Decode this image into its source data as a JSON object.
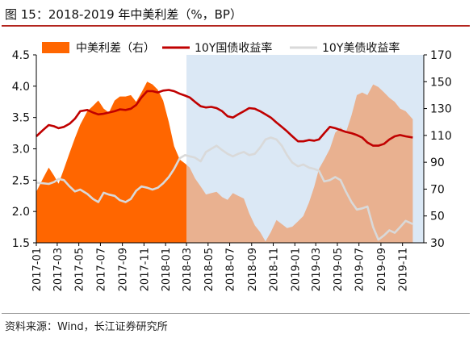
{
  "figure": {
    "title": "图 15：2018-2019 年中美利差（%，BP）",
    "source": "资料来源：Wind，长江证券研究所"
  },
  "chart_data": {
    "type": "line",
    "legend_position": "top",
    "legend": [
      {
        "label": "中美利差（右）",
        "color": "#ff6600",
        "kind": "area"
      },
      {
        "label": "10Y国债收益率",
        "color": "#c00000",
        "kind": "line"
      },
      {
        "label": "10Y美债收益率",
        "color": "#d9d9d9",
        "kind": "line"
      }
    ],
    "x_tick_labels": [
      "2017-01",
      "2017-03",
      "2017-05",
      "2017-07",
      "2017-09",
      "2017-11",
      "2018-01",
      "2018-03",
      "2018-05",
      "2018-07",
      "2018-09",
      "2018-11",
      "2019-01",
      "2019-03",
      "2019-05",
      "2019-07",
      "2019-09",
      "2019-11"
    ],
    "x_range": [
      "2017-01-01",
      "2019-12-31"
    ],
    "highlight_region": {
      "from": "2018-03-01",
      "to": "2019-12-31",
      "color": "#dbe8f5"
    },
    "y_left": {
      "min": 1.5,
      "max": 4.5,
      "ticks": [
        "1.5",
        "2.0",
        "2.5",
        "3.0",
        "3.5",
        "4.0",
        "4.5"
      ]
    },
    "y_right": {
      "min": 30,
      "max": 170,
      "ticks": [
        "30",
        "50",
        "70",
        "90",
        "110",
        "130",
        "150",
        "170"
      ]
    },
    "series": [
      {
        "name": "中美利差（右）",
        "axis": "right",
        "kind": "area",
        "color": "#ff6600",
        "color_after_highlight": "#e9b190",
        "points": [
          [
            "2017-01-01",
            68
          ],
          [
            "2017-01-20",
            78
          ],
          [
            "2017-02-05",
            86
          ],
          [
            "2017-02-20",
            80
          ],
          [
            "2017-03-05",
            74
          ],
          [
            "2017-03-20",
            85
          ],
          [
            "2017-04-05",
            97
          ],
          [
            "2017-04-20",
            108
          ],
          [
            "2017-05-05",
            118
          ],
          [
            "2017-05-25",
            128
          ],
          [
            "2017-06-10",
            132
          ],
          [
            "2017-06-25",
            136
          ],
          [
            "2017-07-10",
            130
          ],
          [
            "2017-07-25",
            127
          ],
          [
            "2017-08-10",
            136
          ],
          [
            "2017-08-25",
            139
          ],
          [
            "2017-09-10",
            139
          ],
          [
            "2017-09-25",
            140
          ],
          [
            "2017-10-10",
            135
          ],
          [
            "2017-10-25",
            142
          ],
          [
            "2017-11-10",
            150
          ],
          [
            "2017-11-25",
            148
          ],
          [
            "2017-12-10",
            144
          ],
          [
            "2017-12-25",
            136
          ],
          [
            "2018-01-10",
            120
          ],
          [
            "2018-01-25",
            102
          ],
          [
            "2018-02-10",
            92
          ],
          [
            "2018-02-25",
            89
          ],
          [
            "2018-03-10",
            86
          ],
          [
            "2018-03-25",
            78
          ],
          [
            "2018-04-10",
            72
          ],
          [
            "2018-04-25",
            66
          ],
          [
            "2018-05-10",
            67
          ],
          [
            "2018-05-25",
            68
          ],
          [
            "2018-06-10",
            64
          ],
          [
            "2018-06-25",
            62
          ],
          [
            "2018-07-10",
            67
          ],
          [
            "2018-07-25",
            65
          ],
          [
            "2018-08-10",
            63
          ],
          [
            "2018-08-25",
            52
          ],
          [
            "2018-09-10",
            43
          ],
          [
            "2018-09-25",
            38
          ],
          [
            "2018-10-10",
            31
          ],
          [
            "2018-10-25",
            38
          ],
          [
            "2018-11-10",
            47
          ],
          [
            "2018-11-25",
            44
          ],
          [
            "2018-12-10",
            41
          ],
          [
            "2018-12-25",
            42
          ],
          [
            "2019-01-10",
            46
          ],
          [
            "2019-01-25",
            50
          ],
          [
            "2019-02-10",
            60
          ],
          [
            "2019-02-25",
            72
          ],
          [
            "2019-03-10",
            85
          ],
          [
            "2019-03-25",
            92
          ],
          [
            "2019-04-10",
            100
          ],
          [
            "2019-04-25",
            112
          ],
          [
            "2019-05-10",
            116
          ],
          [
            "2019-05-25",
            112
          ],
          [
            "2019-06-10",
            125
          ],
          [
            "2019-06-25",
            140
          ],
          [
            "2019-07-10",
            142
          ],
          [
            "2019-07-25",
            140
          ],
          [
            "2019-08-10",
            148
          ],
          [
            "2019-08-25",
            146
          ],
          [
            "2019-09-10",
            142
          ],
          [
            "2019-09-25",
            138
          ],
          [
            "2019-10-10",
            135
          ],
          [
            "2019-10-25",
            130
          ],
          [
            "2019-11-10",
            128
          ],
          [
            "2019-11-30",
            122
          ]
        ]
      },
      {
        "name": "10Y国债收益率",
        "axis": "left",
        "kind": "line",
        "color": "#c00000",
        "points": [
          [
            "2017-01-01",
            3.2
          ],
          [
            "2017-01-20",
            3.3
          ],
          [
            "2017-02-05",
            3.38
          ],
          [
            "2017-02-20",
            3.36
          ],
          [
            "2017-03-05",
            3.33
          ],
          [
            "2017-03-20",
            3.35
          ],
          [
            "2017-04-05",
            3.4
          ],
          [
            "2017-04-20",
            3.48
          ],
          [
            "2017-05-05",
            3.6
          ],
          [
            "2017-05-25",
            3.62
          ],
          [
            "2017-06-10",
            3.58
          ],
          [
            "2017-06-25",
            3.55
          ],
          [
            "2017-07-10",
            3.56
          ],
          [
            "2017-07-25",
            3.58
          ],
          [
            "2017-08-10",
            3.6
          ],
          [
            "2017-08-25",
            3.63
          ],
          [
            "2017-09-10",
            3.62
          ],
          [
            "2017-09-25",
            3.64
          ],
          [
            "2017-10-10",
            3.7
          ],
          [
            "2017-10-25",
            3.82
          ],
          [
            "2017-11-10",
            3.92
          ],
          [
            "2017-11-25",
            3.92
          ],
          [
            "2017-12-10",
            3.9
          ],
          [
            "2017-12-25",
            3.93
          ],
          [
            "2018-01-10",
            3.94
          ],
          [
            "2018-01-25",
            3.92
          ],
          [
            "2018-02-10",
            3.88
          ],
          [
            "2018-02-25",
            3.85
          ],
          [
            "2018-03-10",
            3.82
          ],
          [
            "2018-03-25",
            3.75
          ],
          [
            "2018-04-10",
            3.68
          ],
          [
            "2018-04-25",
            3.66
          ],
          [
            "2018-05-10",
            3.67
          ],
          [
            "2018-05-25",
            3.65
          ],
          [
            "2018-06-10",
            3.6
          ],
          [
            "2018-06-25",
            3.52
          ],
          [
            "2018-07-10",
            3.5
          ],
          [
            "2018-07-25",
            3.55
          ],
          [
            "2018-08-10",
            3.6
          ],
          [
            "2018-08-25",
            3.65
          ],
          [
            "2018-09-10",
            3.64
          ],
          [
            "2018-09-25",
            3.6
          ],
          [
            "2018-10-10",
            3.55
          ],
          [
            "2018-10-25",
            3.5
          ],
          [
            "2018-11-10",
            3.42
          ],
          [
            "2018-11-25",
            3.35
          ],
          [
            "2018-12-10",
            3.28
          ],
          [
            "2018-12-25",
            3.2
          ],
          [
            "2019-01-10",
            3.12
          ],
          [
            "2019-01-25",
            3.12
          ],
          [
            "2019-02-10",
            3.14
          ],
          [
            "2019-02-25",
            3.13
          ],
          [
            "2019-03-10",
            3.15
          ],
          [
            "2019-03-25",
            3.25
          ],
          [
            "2019-04-10",
            3.35
          ],
          [
            "2019-04-25",
            3.33
          ],
          [
            "2019-05-10",
            3.3
          ],
          [
            "2019-05-25",
            3.27
          ],
          [
            "2019-06-10",
            3.25
          ],
          [
            "2019-06-25",
            3.22
          ],
          [
            "2019-07-10",
            3.18
          ],
          [
            "2019-07-25",
            3.1
          ],
          [
            "2019-08-10",
            3.05
          ],
          [
            "2019-08-25",
            3.05
          ],
          [
            "2019-09-10",
            3.08
          ],
          [
            "2019-09-25",
            3.15
          ],
          [
            "2019-10-10",
            3.2
          ],
          [
            "2019-10-25",
            3.22
          ],
          [
            "2019-11-10",
            3.2
          ],
          [
            "2019-11-30",
            3.18
          ]
        ]
      },
      {
        "name": "10Y美债收益率",
        "axis": "left",
        "kind": "line",
        "color": "#d9d9d9",
        "points": [
          [
            "2017-01-01",
            2.46
          ],
          [
            "2017-01-20",
            2.45
          ],
          [
            "2017-02-05",
            2.44
          ],
          [
            "2017-02-20",
            2.47
          ],
          [
            "2017-03-05",
            2.52
          ],
          [
            "2017-03-20",
            2.5
          ],
          [
            "2017-04-05",
            2.4
          ],
          [
            "2017-04-20",
            2.32
          ],
          [
            "2017-05-05",
            2.35
          ],
          [
            "2017-05-25",
            2.28
          ],
          [
            "2017-06-10",
            2.2
          ],
          [
            "2017-06-25",
            2.15
          ],
          [
            "2017-07-10",
            2.3
          ],
          [
            "2017-07-25",
            2.27
          ],
          [
            "2017-08-10",
            2.25
          ],
          [
            "2017-08-25",
            2.18
          ],
          [
            "2017-09-10",
            2.15
          ],
          [
            "2017-09-25",
            2.2
          ],
          [
            "2017-10-10",
            2.33
          ],
          [
            "2017-10-25",
            2.4
          ],
          [
            "2017-11-10",
            2.38
          ],
          [
            "2017-11-25",
            2.35
          ],
          [
            "2017-12-10",
            2.38
          ],
          [
            "2017-12-25",
            2.45
          ],
          [
            "2018-01-10",
            2.55
          ],
          [
            "2018-01-25",
            2.68
          ],
          [
            "2018-02-10",
            2.85
          ],
          [
            "2018-02-25",
            2.9
          ],
          [
            "2018-03-10",
            2.88
          ],
          [
            "2018-03-25",
            2.86
          ],
          [
            "2018-04-10",
            2.8
          ],
          [
            "2018-04-25",
            2.95
          ],
          [
            "2018-05-10",
            3.0
          ],
          [
            "2018-05-25",
            3.05
          ],
          [
            "2018-06-10",
            2.98
          ],
          [
            "2018-06-25",
            2.92
          ],
          [
            "2018-07-10",
            2.88
          ],
          [
            "2018-07-25",
            2.92
          ],
          [
            "2018-08-10",
            2.95
          ],
          [
            "2018-08-25",
            2.9
          ],
          [
            "2018-09-10",
            2.92
          ],
          [
            "2018-09-25",
            3.02
          ],
          [
            "2018-10-10",
            3.15
          ],
          [
            "2018-10-25",
            3.18
          ],
          [
            "2018-11-10",
            3.15
          ],
          [
            "2018-11-25",
            3.05
          ],
          [
            "2018-12-10",
            2.9
          ],
          [
            "2018-12-25",
            2.78
          ],
          [
            "2019-01-10",
            2.72
          ],
          [
            "2019-01-25",
            2.75
          ],
          [
            "2019-02-10",
            2.7
          ],
          [
            "2019-02-25",
            2.68
          ],
          [
            "2019-03-10",
            2.65
          ],
          [
            "2019-03-25",
            2.48
          ],
          [
            "2019-04-10",
            2.5
          ],
          [
            "2019-04-25",
            2.55
          ],
          [
            "2019-05-10",
            2.5
          ],
          [
            "2019-05-25",
            2.32
          ],
          [
            "2019-06-10",
            2.15
          ],
          [
            "2019-06-25",
            2.03
          ],
          [
            "2019-07-10",
            2.05
          ],
          [
            "2019-07-25",
            2.08
          ],
          [
            "2019-08-10",
            1.75
          ],
          [
            "2019-08-25",
            1.55
          ],
          [
            "2019-09-10",
            1.62
          ],
          [
            "2019-09-25",
            1.7
          ],
          [
            "2019-10-10",
            1.66
          ],
          [
            "2019-10-25",
            1.75
          ],
          [
            "2019-11-10",
            1.85
          ],
          [
            "2019-11-30",
            1.8
          ]
        ]
      }
    ]
  }
}
